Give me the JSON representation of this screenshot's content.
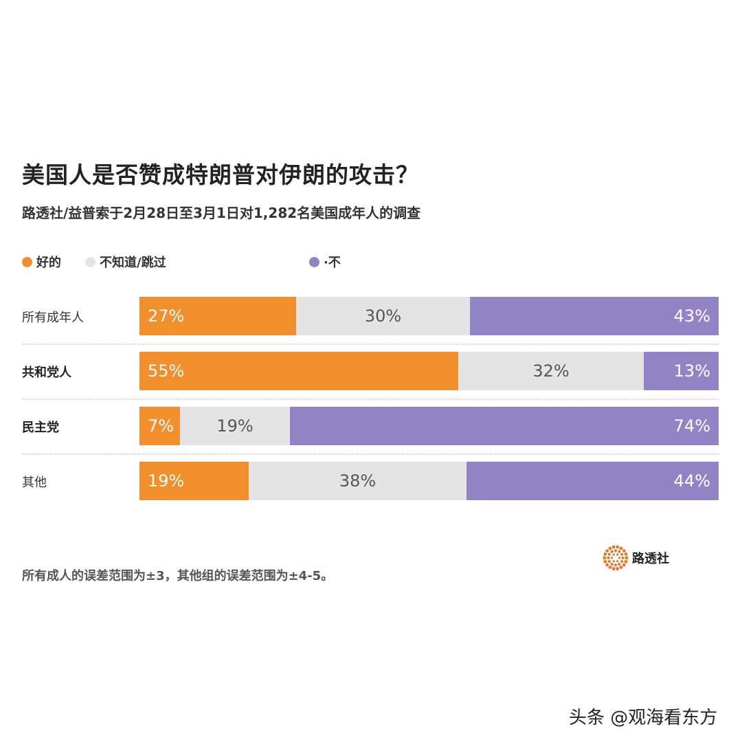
{
  "title": "美国人是否赞成特朗普对伊朗的攻击？",
  "subtitle": "路透社/益普索于2月28日至3月1日对1,282名美国成年人的调查",
  "footnote": "所有成人的误差范围为±3，其他组的误差范围为±4-5。",
  "logo_text": "路透社",
  "watermark": "头条 @观海看东方",
  "colors": {
    "yes": "#f28e2b",
    "unsure": "#e4e4e4",
    "no": "#9283c4"
  },
  "chart_data": {
    "type": "bar",
    "stacked": true,
    "orientation": "horizontal",
    "title": "美国人是否赞成特朗普对伊朗的攻击？",
    "categories": [
      "所有成年人",
      "共和党人",
      "民主党",
      "其他"
    ],
    "series": [
      {
        "name": "好的",
        "values": [
          27,
          55,
          7,
          19
        ],
        "labels": [
          "27%",
          "55%",
          "7%",
          "19%"
        ]
      },
      {
        "name": "不知道/跳过",
        "values": [
          30,
          32,
          19,
          38
        ],
        "labels": [
          "30%",
          "32%",
          "19%",
          "38%"
        ]
      },
      {
        "name": "·不",
        "values": [
          43,
          13,
          74,
          44
        ],
        "labels": [
          "43%",
          "13%",
          "74%",
          "44%"
        ]
      }
    ],
    "legend_position": "top-left",
    "xlim": [
      0,
      100
    ]
  }
}
